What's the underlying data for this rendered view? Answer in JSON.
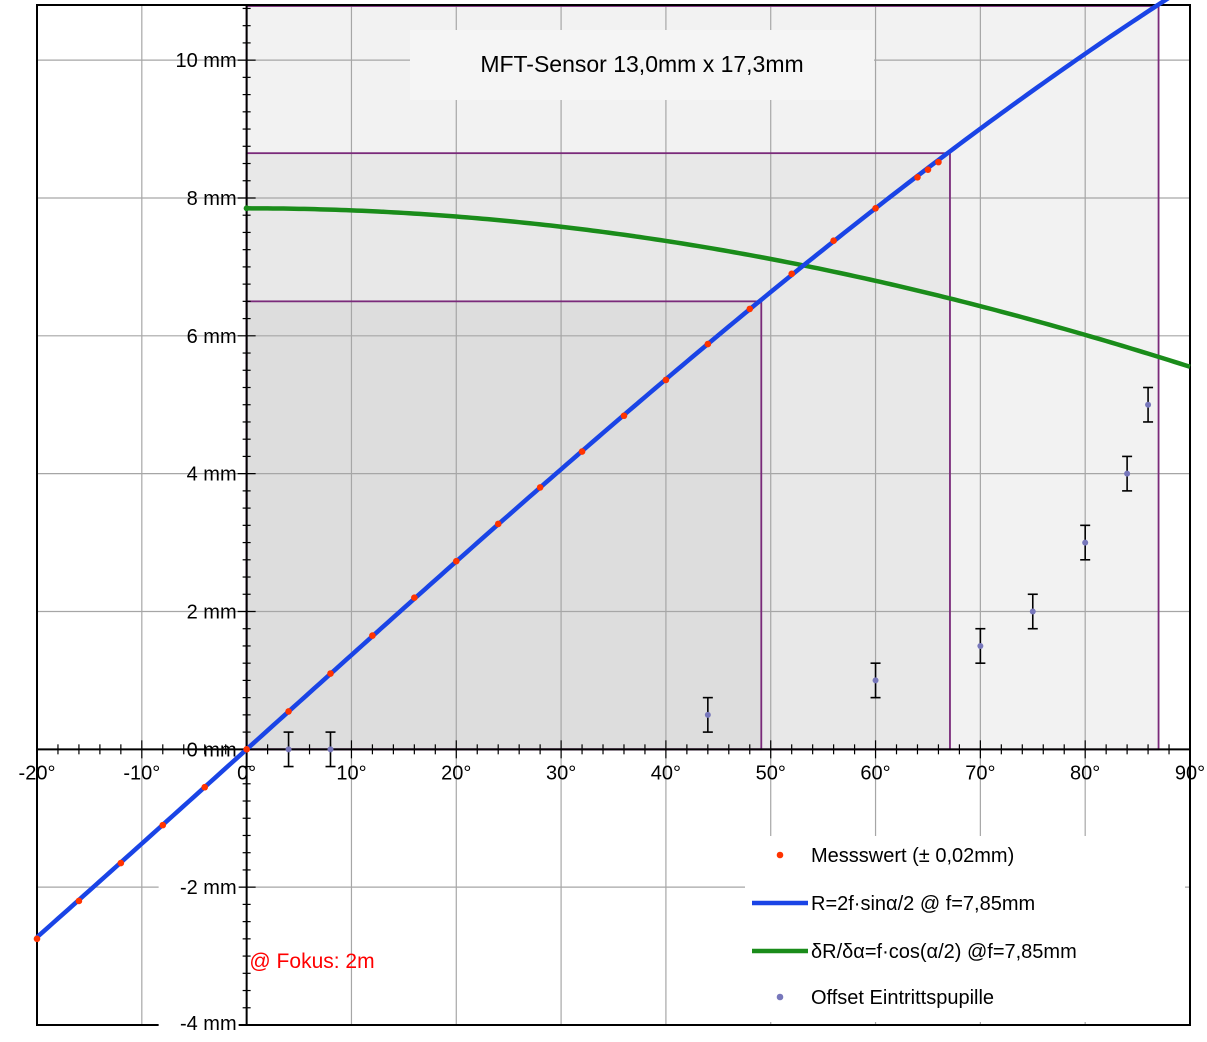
{
  "chart_data": {
    "type": "line",
    "title": "",
    "xlabel": "",
    "ylabel": "",
    "xlim": [
      -20,
      90
    ],
    "ylim": [
      -4,
      10.8
    ],
    "x_ticks": [
      -20,
      -10,
      0,
      10,
      20,
      30,
      40,
      50,
      60,
      70,
      80,
      90
    ],
    "x_tick_labels": [
      "-20°",
      "-10°",
      "0°",
      "10°",
      "20°",
      "30°",
      "40°",
      "50°",
      "60°",
      "70°",
      "80°",
      "90°"
    ],
    "y_ticks": [
      -4,
      -2,
      0,
      2,
      4,
      6,
      8,
      10
    ],
    "y_tick_labels": [
      "-4 mm",
      "-2 mm",
      "0 mm",
      "2 mm",
      "4 mm",
      "6 mm",
      "8 mm",
      "10 mm"
    ],
    "grid": true,
    "legend_position": "bottom-right",
    "annotations": {
      "sensor_label": "MFT-Sensor 13,0mm x 17,3mm",
      "focus_label": "@ Fokus: 2m"
    },
    "colors": {
      "measurement": "#ff3300",
      "model_curve": "#1a44e6",
      "derivative_curve": "#1a8c1a",
      "offset_points": "#7777bb",
      "sensor_box": "#7a2a7a",
      "focus_text": "#ff0000"
    },
    "sensor_rectangles": [
      {
        "x_end": 49.1,
        "y_end": 6.5
      },
      {
        "x_end": 67.1,
        "y_end": 8.65
      },
      {
        "x_end": 87.0,
        "y_end": 10.8
      }
    ],
    "series": [
      {
        "name": "Messswert (± 0,02mm)",
        "kind": "points",
        "x": [
          -20,
          -16,
          -12,
          -8,
          -4,
          0,
          4,
          8,
          12,
          16,
          20,
          24,
          28,
          32,
          36,
          40,
          44,
          48,
          52,
          56,
          60,
          64,
          65,
          66
        ],
        "y": [
          -2.75,
          -2.2,
          -1.65,
          -1.1,
          -0.55,
          0,
          0.55,
          1.1,
          1.65,
          2.2,
          2.73,
          3.27,
          3.8,
          4.32,
          4.84,
          5.36,
          5.88,
          6.39,
          6.9,
          7.38,
          7.85,
          8.3,
          8.41,
          8.52
        ]
      },
      {
        "name": "R=2f·sinα/2 @ f=7,85mm",
        "kind": "curve",
        "formula": "R = 2*f*sin(alpha/2)",
        "f": 7.85,
        "x_range": [
          -20,
          90
        ]
      },
      {
        "name": "δR/δα=f·cos(α/2) @f=7,85mm",
        "kind": "curve",
        "formula": "dR = f*cos(alpha/2)",
        "f": 7.85,
        "x_range": [
          0,
          90
        ]
      },
      {
        "name": "Offset Eintrittspupille",
        "kind": "points_with_errorbars",
        "x": [
          4,
          8,
          44,
          60,
          70,
          75,
          80,
          84,
          86
        ],
        "y": [
          0,
          0,
          0.5,
          1.0,
          1.5,
          2.0,
          3.0,
          4.0,
          5.0
        ],
        "error": 0.25
      }
    ]
  }
}
